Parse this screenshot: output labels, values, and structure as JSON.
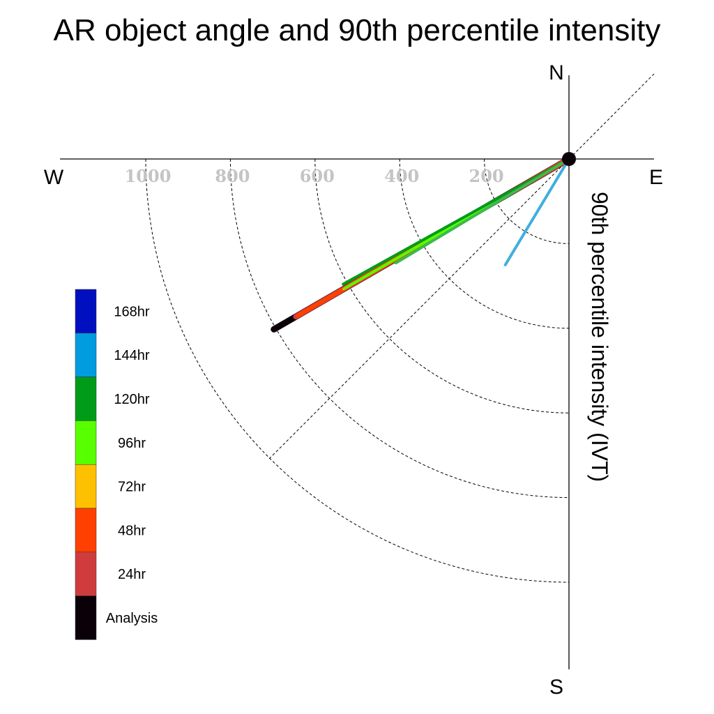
{
  "chart_data": {
    "type": "polar-line",
    "title": "AR object angle and 90th percentile intensity",
    "ylabel": "90th percentile intensity (IVT)",
    "compass": {
      "north": "N",
      "south": "S",
      "east": "E",
      "west": "W"
    },
    "radial_ticks": [
      200,
      400,
      600,
      800,
      1000
    ],
    "rlim": [
      0,
      1200
    ],
    "grid": true,
    "legend_placement": "left",
    "legend": [
      {
        "label": "168hr",
        "color": "#0010c0"
      },
      {
        "label": "144hr",
        "color": "#009ce0"
      },
      {
        "label": "120hr",
        "color": "#009c18"
      },
      {
        "label": "96hr",
        "color": "#58ff00"
      },
      {
        "label": "72hr",
        "color": "#ffc000"
      },
      {
        "label": "48hr",
        "color": "#ff4000"
      },
      {
        "label": "24hr",
        "color": "#d03c3c"
      },
      {
        "label": "Analysis",
        "color": "#0c0008"
      }
    ],
    "series": [
      {
        "name": "Analysis",
        "color": "#0c0008",
        "angle_deg": 240,
        "value": 805,
        "width": 9
      },
      {
        "name": "24hr",
        "color": "#d03c3c",
        "angle_deg": 240,
        "value": 745,
        "width": 8
      },
      {
        "name": "48hr",
        "color": "#ff4000",
        "angle_deg": 240,
        "value": 740,
        "width": 6
      },
      {
        "name": "72hr",
        "color": "#ffc000",
        "angle_deg": 240,
        "value": 615,
        "width": 3
      },
      {
        "name": "96hr",
        "color": "#58ff00",
        "angle_deg": 240,
        "value": 612,
        "width": 4
      },
      {
        "name": "120hr",
        "color": "#009c18",
        "angle_deg": 241,
        "value": 610,
        "width": 4
      },
      {
        "name": "120hr",
        "color": "#3cba4c",
        "angle_deg": 239,
        "value": 477,
        "width": 4
      },
      {
        "name": "144hr",
        "color": "#40aee0",
        "angle_deg": 211,
        "value": 292,
        "width": 4
      }
    ]
  }
}
